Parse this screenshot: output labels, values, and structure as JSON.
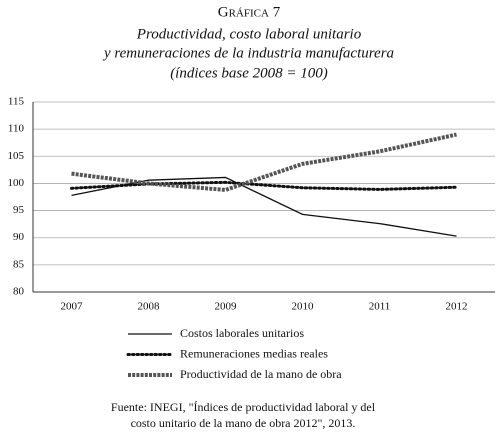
{
  "chart_data": {
    "type": "line",
    "label": "Gráfica 7",
    "title": [
      "Productividad, costo laboral unitario",
      "y remuneraciones de la industria manufacturera"
    ],
    "subtitle": "(índices base 2008 = 100)",
    "categories": [
      "2007",
      "2008",
      "2009",
      "2010",
      "2011",
      "2012"
    ],
    "series": [
      {
        "name": "Costos laborales unitarios",
        "color": "#111111",
        "line_style": "solid",
        "values": [
          97.8,
          100.6,
          101.1,
          94.3,
          92.6,
          90.3
        ]
      },
      {
        "name": "Remuneraciones medias reales",
        "color": "#111111",
        "line_style": "dotted",
        "values": [
          99.1,
          99.9,
          100.2,
          99.2,
          98.9,
          99.3
        ]
      },
      {
        "name": "Productividad de la mano de obra",
        "color": "#555555",
        "line_style": "diamonds",
        "values": [
          101.8,
          100.0,
          98.8,
          103.6,
          105.9,
          109.0
        ]
      }
    ],
    "ylim": [
      80,
      115
    ],
    "yticks": [
      80,
      85,
      90,
      95,
      100,
      105,
      110,
      115
    ],
    "grid": true,
    "source": [
      "Fuente: INEGI, \"Índices de productividad laboral y del",
      "costo unitario de la mano de obra 2012\", 2013."
    ]
  }
}
